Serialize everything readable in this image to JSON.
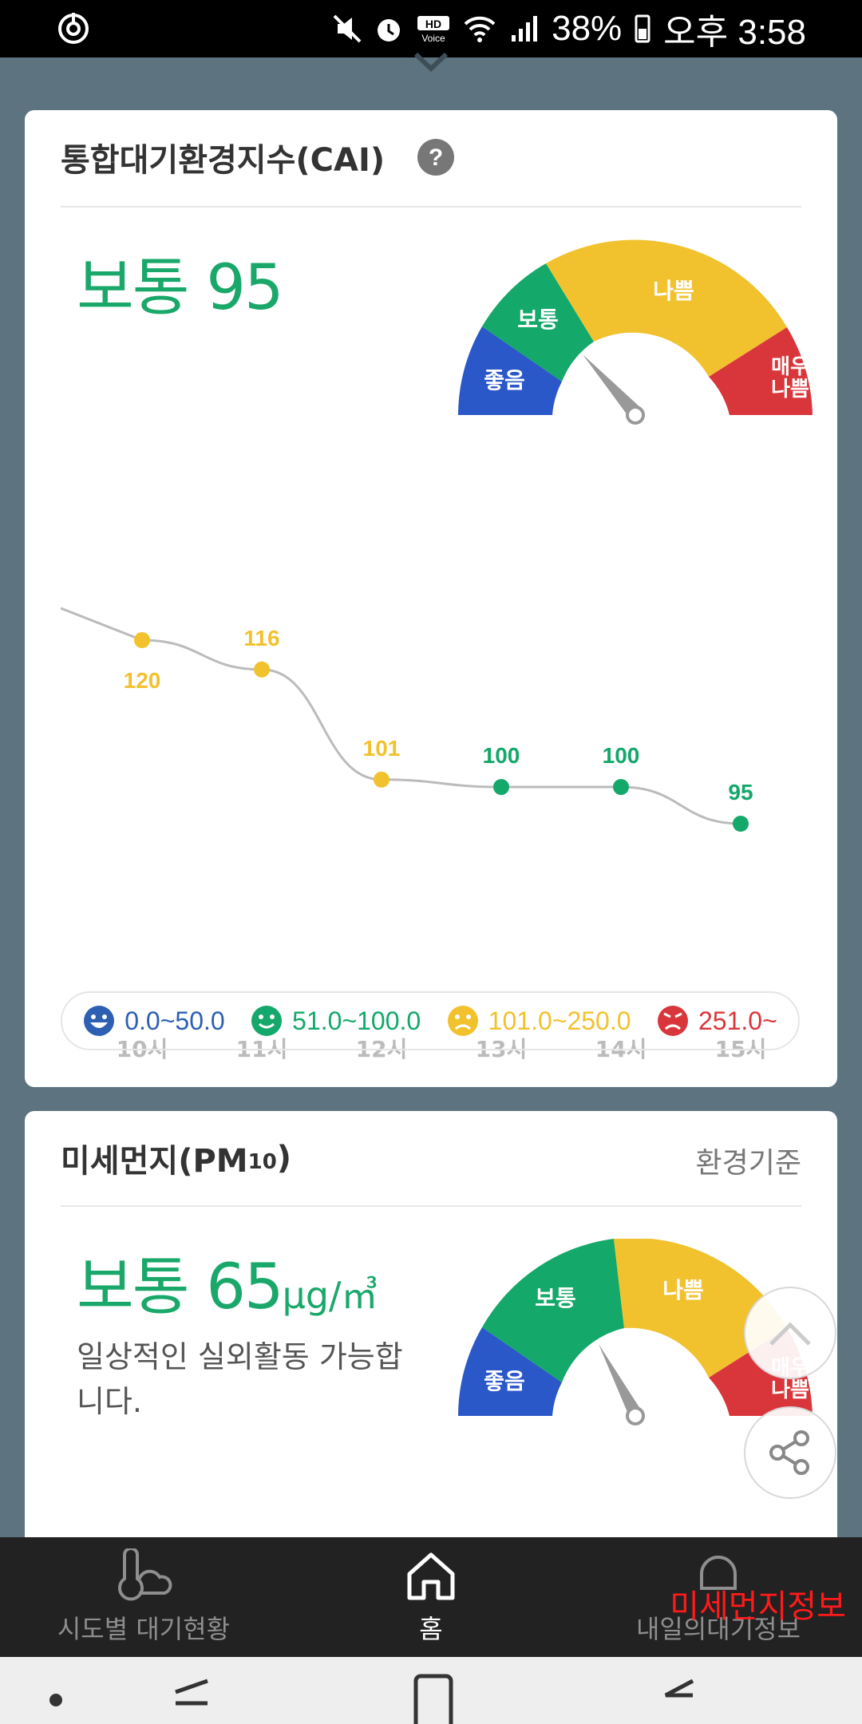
{
  "status_bar": {
    "battery": "38%",
    "time": "오후 3:58"
  },
  "cai_card": {
    "title": "통합대기환경지수(CAI)",
    "status": "보통",
    "value": "95",
    "gauge_labels": [
      "좋음",
      "보통",
      "나쁨",
      "매우\n나쁨"
    ],
    "chart_data": {
      "type": "line",
      "x": [
        "10시",
        "11시",
        "12시",
        "13시",
        "14시",
        "15시"
      ],
      "values": [
        120,
        116,
        101,
        100,
        100,
        95
      ],
      "point_colors": [
        "#f2c12e",
        "#f2c12e",
        "#f2c12e",
        "#14a86a",
        "#14a86a",
        "#14a86a"
      ]
    },
    "legend": [
      {
        "range": "0.0~50.0",
        "color": "#2d5fb3",
        "icon": "very-happy-face-icon"
      },
      {
        "range": "51.0~100.0",
        "color": "#14a86a",
        "icon": "smile-face-icon"
      },
      {
        "range": "101.0~250.0",
        "color": "#f2c12e",
        "icon": "sad-face-icon"
      },
      {
        "range": "251.0~",
        "color": "#d9363b",
        "icon": "angry-face-icon"
      }
    ]
  },
  "pm_card": {
    "title": "미세먼지(PM",
    "title_sub": "10",
    "title_end": ")",
    "standard_link": "환경기준",
    "status": "보통",
    "value": "65",
    "unit": "μg/㎥",
    "description": "일상적인 실외활동 가능합니다.",
    "gauge_labels": [
      "좋음",
      "보통",
      "나쁨",
      "매우\n나쁨"
    ]
  },
  "colors": {
    "good": "#2a58c8",
    "normal": "#14a86a",
    "bad": "#f2c12e",
    "very_bad": "#d9363b"
  },
  "bottom_nav": [
    {
      "label": "시도별 대기현황",
      "icon": "thermometer-cloud-icon"
    },
    {
      "label": "홈",
      "icon": "home-icon"
    },
    {
      "label": "내일의대기정보",
      "icon": "bell-icon"
    }
  ],
  "overlay_label": "미세먼지정보"
}
